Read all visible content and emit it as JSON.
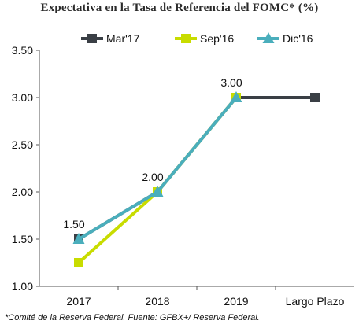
{
  "chart_data": {
    "type": "line",
    "title": "Expectativa en la Tasa de Referencia del FOMC*  (%)",
    "categories": [
      "2017",
      "2018",
      "2019",
      "Largo Plazo"
    ],
    "ylim": [
      1.0,
      3.5
    ],
    "yticks": [
      "1.00",
      "1.50",
      "2.00",
      "2.50",
      "3.00",
      "3.50"
    ],
    "ytick_values": [
      1.0,
      1.5,
      2.0,
      2.5,
      3.0,
      3.5
    ],
    "grid": false,
    "legend_position": "top",
    "series": [
      {
        "name": "Mar'17",
        "color": "#3a3f45",
        "marker": "square",
        "values": [
          1.5,
          2.0,
          3.0,
          3.0
        ]
      },
      {
        "name": "Sep'16",
        "color": "#c8dc00",
        "marker": "square",
        "values": [
          1.25,
          2.0,
          3.0,
          null
        ]
      },
      {
        "name": "Dic'16",
        "color": "#4aaebc",
        "marker": "triangle",
        "values": [
          1.5,
          2.0,
          3.0,
          null
        ]
      }
    ],
    "data_labels": [
      {
        "category_index": 0,
        "value": 1.5,
        "text": "1.50"
      },
      {
        "category_index": 1,
        "value": 2.0,
        "text": "2.00"
      },
      {
        "category_index": 2,
        "value": 3.0,
        "text": "3.00"
      }
    ],
    "footnote": "*Comité de la Reserva Federal. Fuente: GFBX+/  Reserva Federal."
  }
}
